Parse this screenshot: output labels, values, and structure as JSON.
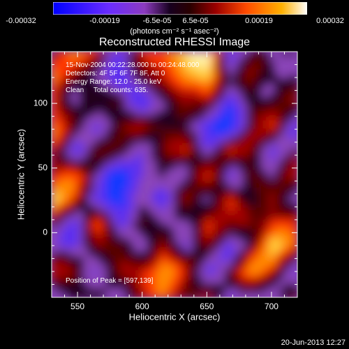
{
  "colorbar": {
    "tick_labels": [
      "-0.00032",
      "-0.00019",
      "-6.5e-05",
      "6.5e-05",
      "0.00019",
      "0.00032"
    ],
    "units_text": "(photons cm⁻² s⁻¹ asec⁻²)"
  },
  "chart_data": {
    "type": "heatmap",
    "title": "Reconstructed RHESSI Image",
    "xlabel": "Heliocentric X (arcsec)",
    "ylabel": "Heliocentric Y (arcsec)",
    "xlim": [
      530,
      720
    ],
    "ylim": [
      -50,
      140
    ],
    "x_ticks": [
      550,
      600,
      650,
      700
    ],
    "y_ticks": [
      0,
      50,
      100
    ],
    "colorbar_range": [
      -0.00032,
      0.00032
    ],
    "annotations": {
      "time": "15-Nov-2004 00:22:28.000 to 00:24:48.000",
      "detectors": "Detectors: 4F 5F 6F 7F 8F, Att 0",
      "energy": "Energy Range: 12.0 - 25.0 keV",
      "clean": "Clean     Total counts: 635.",
      "peak": "Position of Peak = [597,139]"
    },
    "field_seed": [
      [
        0.15,
        0.35,
        0.55,
        -0.3,
        0.2,
        0.6,
        0.85,
        0.95,
        -0.2,
        0.1,
        -0.4,
        0.05
      ],
      [
        0.55,
        0.2,
        -0.1,
        -0.6,
        0.05,
        0.25,
        0.75,
        0.95,
        -0.3,
        0.2,
        0.15,
        -0.1
      ],
      [
        0.65,
        -0.1,
        -0.2,
        0.2,
        -0.5,
        -0.2,
        0.35,
        0.2,
        -0.7,
        0.3,
        0.1,
        0.0
      ],
      [
        0.45,
        0.05,
        -0.3,
        0.1,
        0.45,
        0.05,
        -0.2,
        -0.4,
        -0.6,
        -0.1,
        0.35,
        -0.2
      ],
      [
        0.1,
        -0.2,
        0.3,
        -0.1,
        -0.3,
        0.25,
        0.4,
        -0.2,
        0.35,
        0.1,
        -0.2,
        0.1
      ],
      [
        0.55,
        0.35,
        -0.2,
        -0.7,
        -0.4,
        0.1,
        -0.2,
        0.2,
        -0.3,
        0.45,
        -0.4,
        0.3
      ],
      [
        0.75,
        0.2,
        -0.3,
        -0.6,
        -0.2,
        -0.5,
        0.3,
        -0.1,
        0.5,
        -0.2,
        0.2,
        -0.1
      ],
      [
        0.2,
        -0.2,
        0.35,
        -0.4,
        0.2,
        -0.3,
        0.05,
        0.5,
        -0.1,
        0.3,
        0.65,
        0.2
      ],
      [
        -0.1,
        -0.4,
        0.1,
        0.2,
        -0.2,
        0.4,
        -0.4,
        0.15,
        -0.3,
        0.1,
        0.8,
        0.45
      ],
      [
        0.1,
        0.3,
        -0.2,
        0.1,
        0.45,
        0.7,
        0.2,
        -0.2,
        0.2,
        0.4,
        0.35,
        -0.1
      ],
      [
        -0.2,
        0.1,
        0.05,
        -0.3,
        0.2,
        0.65,
        0.3,
        0.1,
        -0.4,
        0.1,
        -0.2,
        0.05
      ]
    ]
  },
  "footer": {
    "stamp": "20-Jun-2013 12:27"
  }
}
